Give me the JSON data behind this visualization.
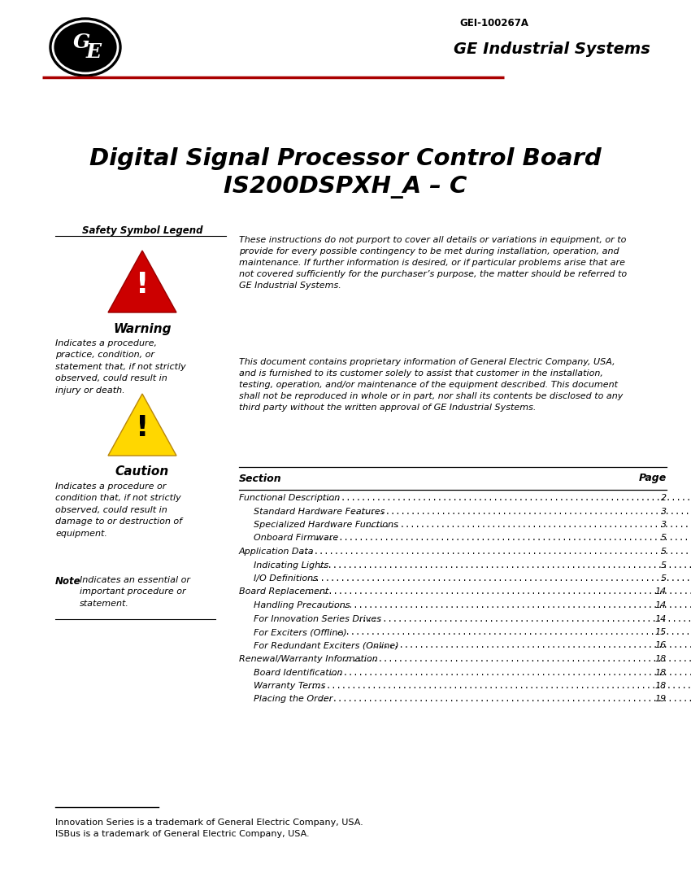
{
  "doc_number": "GEI-100267A",
  "company": "GE Industrial Systems",
  "title_line1": "Digital Signal Processor Control Board",
  "title_line2": "IS200DSPXH_A – C",
  "header_line_color": "#AA0000",
  "bg_color": "#ffffff",
  "safety_legend_title": "Safety Symbol Legend",
  "warning_label": "Warning",
  "warning_desc": "Indicates a procedure,\npractice, condition, or\nstatement that, if not strictly\nobserved, could result in\ninjury or death.",
  "caution_label": "Caution",
  "caution_desc": "Indicates a procedure or\ncondition that, if not strictly\nobserved, could result in\ndamage to or destruction of\nequipment.",
  "note_label": "Note",
  "note_desc": "Indicates an essential or\nimportant procedure or\nstatement.",
  "intro_text": "These instructions do not purport to cover all details or variations in equipment, or to\nprovide for every possible contingency to be met during installation, operation, and\nmaintenance. If further information is desired, or if particular problems arise that are\nnot covered sufficiently for the purchaser’s purpose, the matter should be referred to\nGE Industrial Systems.",
  "proprietary_text": "This document contains proprietary information of General Electric Company, USA,\nand is furnished to its customer solely to assist that customer in the installation,\ntesting, operation, and/or maintenance of the equipment described. This document\nshall not be reproduced in whole or in part, nor shall its contents be disclosed to any\nthird party without the written approval of GE Industrial Systems.",
  "section_header": "Section",
  "page_header": "Page",
  "toc_entries": [
    [
      "Functional Description",
      "2",
      false
    ],
    [
      "Standard Hardware Features",
      "3",
      true
    ],
    [
      "Specialized Hardware Functions",
      "3",
      true
    ],
    [
      "Onboard Firmware",
      "5",
      true
    ],
    [
      "Application Data",
      "5",
      false
    ],
    [
      "Indicating Lights",
      "5",
      true
    ],
    [
      "I/O Definitions",
      "5",
      true
    ],
    [
      "Board Replacement",
      "14",
      false
    ],
    [
      "Handling Precautions",
      "14",
      true
    ],
    [
      "For Innovation Series Drives",
      "14",
      true
    ],
    [
      "For Exciters (Offline)",
      "15",
      true
    ],
    [
      "For Redundant Exciters (Online)",
      "16",
      true
    ],
    [
      "Renewal/Warranty Information",
      "18",
      false
    ],
    [
      "Board Identification",
      "18",
      true
    ],
    [
      "Warranty Terms",
      "18",
      true
    ],
    [
      "Placing the Order",
      "19",
      true
    ]
  ],
  "footer_line1": "Innovation Series is a trademark of General Electric Company, USA.",
  "footer_line2": "ISBus is a trademark of General Electric Company, USA."
}
